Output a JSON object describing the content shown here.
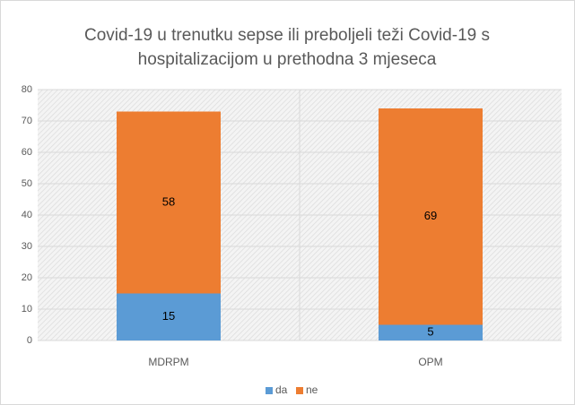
{
  "chart_data": {
    "type": "stacked_bar",
    "title": "Covid-19 u trenutku sepse ili preboljeli teži Covid-19 s hospitalizacijom u prethodna 3 mjeseca",
    "categories": [
      "MDRPM",
      "OPM"
    ],
    "series": [
      {
        "name": "da",
        "color": "#5b9bd5",
        "values": [
          15,
          5
        ]
      },
      {
        "name": "ne",
        "color": "#ed7d31",
        "values": [
          58,
          69
        ]
      }
    ],
    "ylim": [
      0,
      80
    ],
    "yticks": [
      0,
      10,
      20,
      30,
      40,
      50,
      60,
      70,
      80
    ],
    "grid": true,
    "legend": "bottom"
  }
}
